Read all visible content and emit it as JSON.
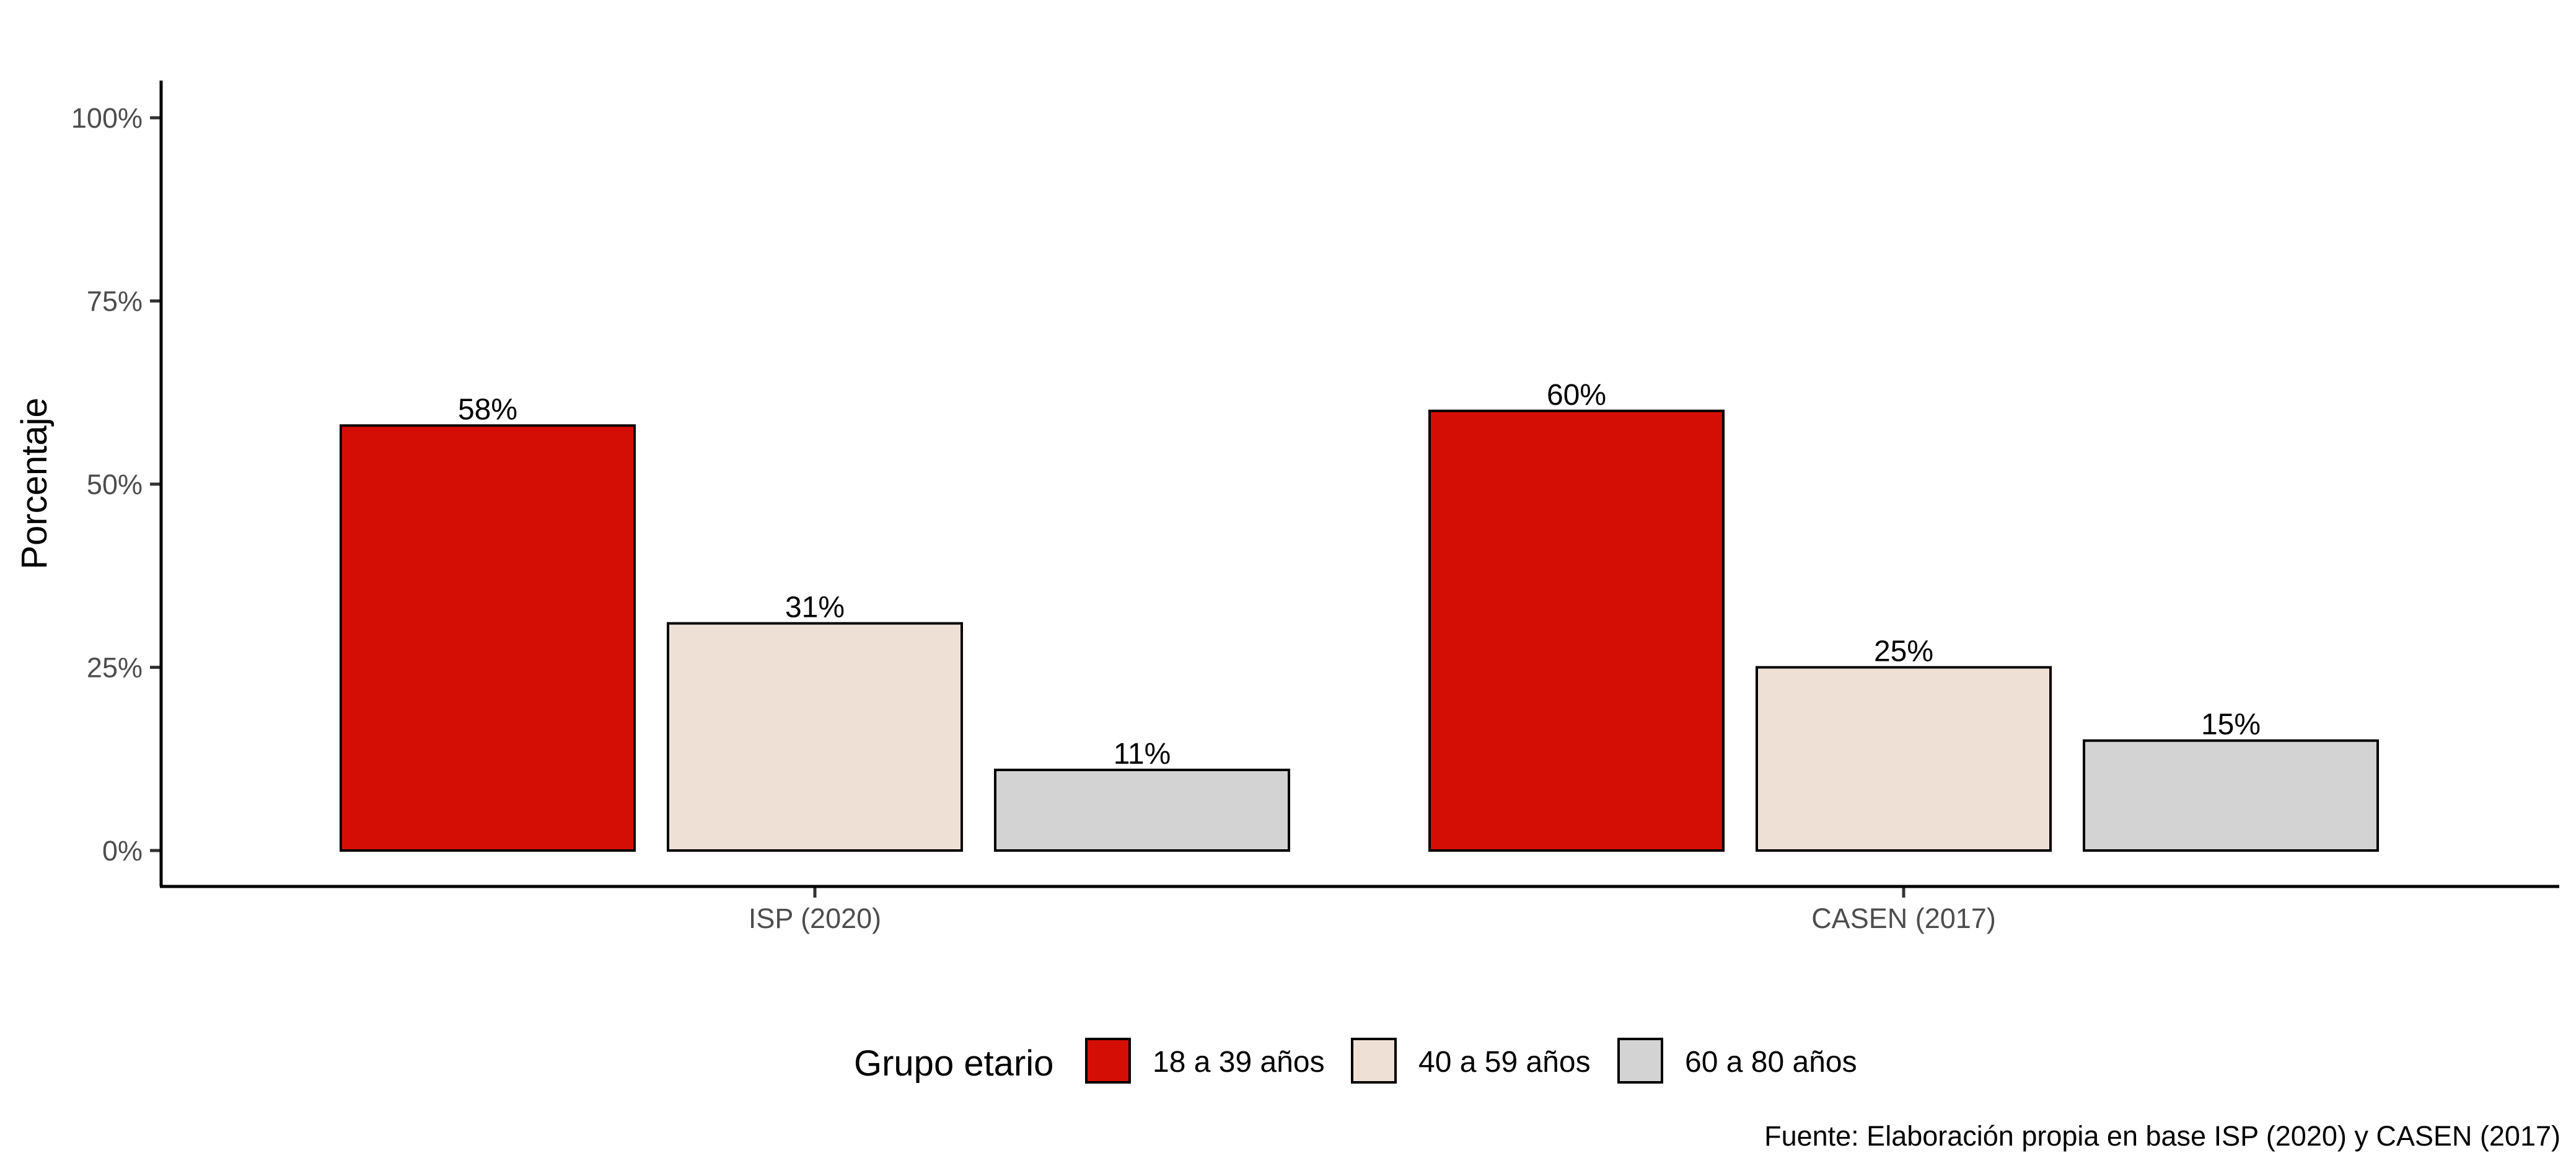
{
  "chart_data": {
    "type": "bar",
    "categories": [
      "ISP (2020)",
      "CASEN (2017)"
    ],
    "series": [
      {
        "name": "18 a 39 años",
        "values": [
          58,
          60
        ],
        "labels": [
          "58%",
          "60%"
        ],
        "color": "#d40e04"
      },
      {
        "name": "40 a 59 años",
        "values": [
          31,
          25
        ],
        "labels": [
          "31%",
          "25%"
        ],
        "color": "#efe0d6"
      },
      {
        "name": "60 a 80 años",
        "values": [
          11,
          15
        ],
        "labels": [
          "11%",
          "15%"
        ],
        "color": "#d3d3d3"
      }
    ],
    "xlabel": "",
    "ylabel": "Porcentaje",
    "ylim": [
      0,
      100
    ],
    "yticks": [
      0,
      25,
      50,
      75,
      100
    ],
    "ytick_labels": [
      "0%",
      "25%",
      "50%",
      "75%",
      "100%"
    ],
    "grid": false,
    "legend": {
      "title": "Grupo etario",
      "position": "bottom"
    },
    "caption": "Fuente: Elaboración propia en base ISP (2020) y CASEN (2017)"
  }
}
